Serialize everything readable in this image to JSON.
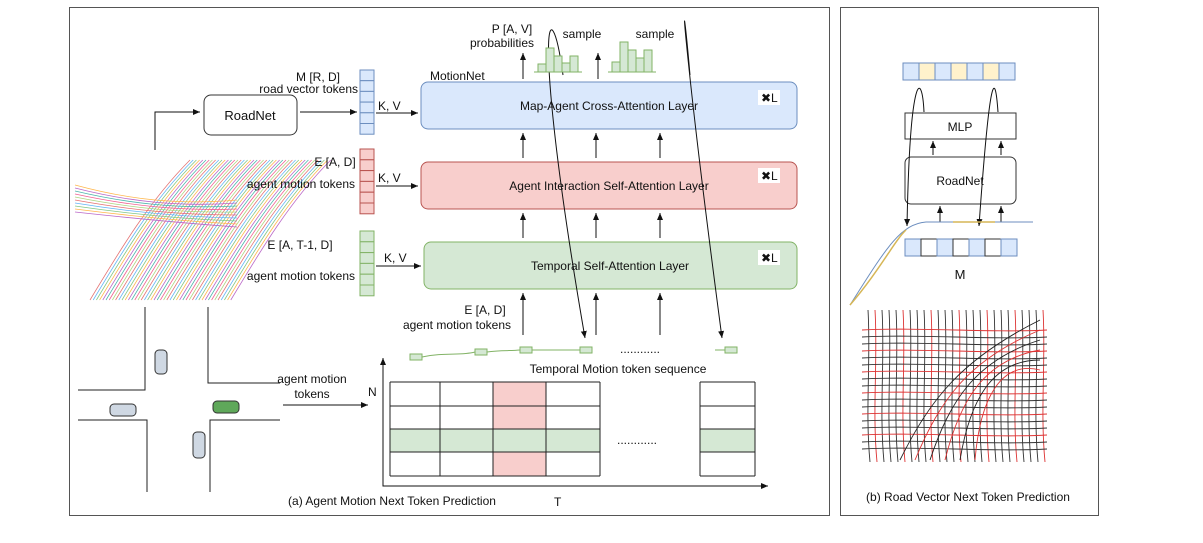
{
  "panel_a": {
    "caption": "(a) Agent Motion Next Token Prediction",
    "roadnet_label": "RoadNet",
    "road_tokens_shape": "M [R, D]",
    "road_tokens_label": "road vector  tokens",
    "motionnet_label": "MotionNet",
    "layers": [
      {
        "label": "Map-Agent  Cross-Attention Layer",
        "repeat": "L",
        "color": "#dae8fc"
      },
      {
        "label": "Agent Interaction Self-Attention Layer",
        "repeat": "L",
        "color": "#f8cecc"
      },
      {
        "label": "Temporal Self-Attention Layer",
        "repeat": "L",
        "color": "#d5e8d4"
      }
    ],
    "kv_label": "K, V",
    "agent_tokens_shape": "E [A, D]",
    "agent_tokens_label": "agent motion tokens",
    "temporal_tokens_shape": "E [A, T-1, D]",
    "temporal_tokens_label": "agent motion tokens",
    "input_shape": "E [A, D]",
    "input_label": "agent motion tokens",
    "prob_shape": "P [A, V]",
    "prob_label": "probabilities",
    "sample_label_1": "sample",
    "sample_label_2": "sample",
    "sequence_label": "Temporal Motion token sequence",
    "sequence_dots": "............",
    "scene_label_1": "agent motion",
    "scene_label_2": "tokens",
    "grid_dots": "............",
    "axis_n": "N",
    "axis_t": "T"
  },
  "panel_b": {
    "caption": "(b) Road Vector Next Token Prediction",
    "mlp_label": "MLP",
    "roadnet_label": "RoadNet",
    "m_label": "M"
  },
  "colors": {
    "blue": "#dae8fc",
    "red": "#f8cecc",
    "green": "#d5e8d4",
    "yellow": "#fff2cc"
  }
}
